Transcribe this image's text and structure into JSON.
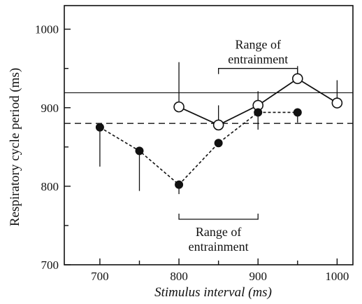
{
  "chart_data": {
    "type": "line",
    "xlabel": "Stimulus interval (ms)",
    "ylabel": "Respiratory cycle period (ms)",
    "xlim": [
      655,
      1020
    ],
    "ylim": [
      700,
      1030
    ],
    "xticks": [
      700,
      800,
      900,
      1000
    ],
    "yticks": [
      700,
      800,
      900,
      1000
    ],
    "x_minor_ticks": [
      750,
      850,
      950
    ],
    "y_minor_ticks": [
      750,
      850,
      950
    ],
    "grid": false,
    "reference_lines": [
      {
        "style": "solid",
        "y": 919
      },
      {
        "style": "dashed",
        "y": 880
      }
    ],
    "series": [
      {
        "marker": "open-circle",
        "line": "solid",
        "x": [
          800,
          850,
          900,
          950,
          1000
        ],
        "y": [
          901,
          878,
          903,
          937,
          906
        ],
        "err_low": [
          901,
          878,
          903,
          937,
          906
        ],
        "err_high": [
          958,
          903,
          921,
          953,
          935
        ]
      },
      {
        "marker": "filled-circle",
        "line": "dashed",
        "x": [
          700,
          750,
          800,
          850,
          900,
          950
        ],
        "y": [
          875,
          845,
          802,
          855,
          894,
          894
        ],
        "err_low": [
          825,
          794,
          790,
          855,
          872,
          881
        ],
        "err_high": [
          875,
          845,
          802,
          855,
          894,
          894
        ]
      }
    ],
    "annotations": [
      {
        "text_line1": "Range of",
        "text_line2": "entrainment",
        "x_range": [
          850,
          950
        ],
        "y": 950,
        "placement": "above"
      },
      {
        "text_line1": "Range of",
        "text_line2": "entrainment",
        "x_range": [
          800,
          900
        ],
        "y": 758,
        "placement": "below"
      }
    ]
  }
}
